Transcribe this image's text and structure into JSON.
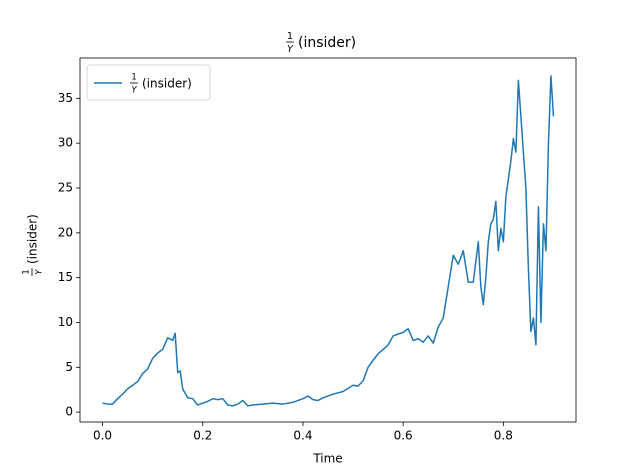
{
  "chart_data": {
    "type": "line",
    "title": {
      "numerator": "1",
      "denominator": "Y",
      "text": "(insider)"
    },
    "xlabel": "Time",
    "ylabel": {
      "numerator": "1",
      "denominator": "Y",
      "text": "(insider)"
    },
    "x": [
      0,
      0.01,
      0.02,
      0.03,
      0.04,
      0.05,
      0.06,
      0.07,
      0.08,
      0.09,
      0.1,
      0.11,
      0.12,
      0.13,
      0.14,
      0.145,
      0.15,
      0.155,
      0.16,
      0.17,
      0.18,
      0.19,
      0.2,
      0.21,
      0.22,
      0.23,
      0.24,
      0.25,
      0.26,
      0.27,
      0.28,
      0.29,
      0.3,
      0.32,
      0.34,
      0.36,
      0.38,
      0.4,
      0.41,
      0.42,
      0.43,
      0.44,
      0.46,
      0.48,
      0.5,
      0.51,
      0.52,
      0.53,
      0.54,
      0.55,
      0.56,
      0.57,
      0.58,
      0.59,
      0.6,
      0.61,
      0.62,
      0.63,
      0.64,
      0.65,
      0.66,
      0.67,
      0.68,
      0.69,
      0.7,
      0.71,
      0.72,
      0.73,
      0.74,
      0.75,
      0.755,
      0.76,
      0.765,
      0.77,
      0.775,
      0.78,
      0.785,
      0.79,
      0.795,
      0.8,
      0.805,
      0.81,
      0.815,
      0.82,
      0.825,
      0.83,
      0.835,
      0.84,
      0.845,
      0.85,
      0.855,
      0.86,
      0.865,
      0.87,
      0.875,
      0.88,
      0.885,
      0.89,
      0.895,
      0.9
    ],
    "series": [
      {
        "name": {
          "numerator": "1",
          "denominator": "Y",
          "text": "(insider)"
        },
        "color": "#1f77b4",
        "values": [
          1.0,
          0.9,
          0.9,
          1.5,
          2.0,
          2.6,
          3.0,
          3.4,
          4.3,
          4.8,
          6.0,
          6.6,
          7.0,
          8.3,
          8.0,
          8.8,
          4.4,
          4.6,
          2.6,
          1.6,
          1.5,
          0.8,
          1.0,
          1.2,
          1.5,
          1.4,
          1.5,
          0.8,
          0.7,
          0.9,
          1.3,
          0.7,
          0.8,
          0.9,
          1.0,
          0.9,
          1.1,
          1.5,
          1.8,
          1.4,
          1.3,
          1.6,
          2.0,
          2.3,
          3.0,
          2.9,
          3.5,
          5.0,
          5.8,
          6.5,
          7.0,
          7.5,
          8.5,
          8.7,
          8.9,
          9.3,
          8.0,
          8.2,
          7.8,
          8.5,
          7.7,
          9.5,
          10.5,
          14.0,
          17.5,
          16.5,
          18.0,
          14.5,
          14.5,
          19.0,
          14.0,
          12.0,
          15.0,
          19.0,
          21.0,
          21.5,
          23.5,
          18.0,
          20.5,
          19.0,
          24.0,
          26.0,
          28.0,
          30.5,
          29.0,
          37.0,
          33.0,
          29.0,
          25.0,
          16.0,
          9.0,
          10.5,
          7.5,
          22.9,
          10.0,
          21.0,
          18.0,
          30.0,
          37.5,
          33.0
        ]
      }
    ],
    "xlim": [
      -0.045,
      0.945
    ],
    "ylim": [
      -1.1,
      39.5
    ],
    "xticks": [
      {
        "value": 0,
        "label": "0.0"
      },
      {
        "value": 0.2,
        "label": "0.2"
      },
      {
        "value": 0.4,
        "label": "0.4"
      },
      {
        "value": 0.6,
        "label": "0.6"
      },
      {
        "value": 0.8,
        "label": "0.8"
      }
    ],
    "yticks": [
      0,
      5,
      10,
      15,
      20,
      25,
      30,
      35
    ],
    "legend": "upper left"
  }
}
